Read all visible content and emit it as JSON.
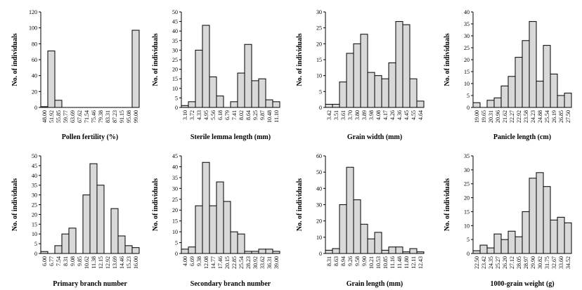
{
  "figure": {
    "ylabel": "No. of individuals"
  },
  "chart_data": [
    {
      "type": "bar",
      "title": "",
      "xlabel": "Pollen fertility (%)",
      "ylabel": "No. of individuals",
      "ylim": [
        0,
        120
      ],
      "yticks": [
        0,
        20,
        40,
        60,
        80,
        100,
        120
      ],
      "categories": [
        "48.00",
        "51.92",
        "55.85",
        "59.77",
        "63.69",
        "67.62",
        "71.54",
        "75.46",
        "79.38",
        "83.31",
        "87.23",
        "91.15",
        "95.08",
        "99.00"
      ],
      "values": [
        1,
        71,
        9,
        0,
        0,
        0,
        0,
        0,
        0,
        0,
        0,
        0,
        0,
        97
      ]
    },
    {
      "type": "bar",
      "title": "",
      "xlabel": "Sterile lemma length (mm)",
      "ylabel": "No. of individuals",
      "ylim": [
        0,
        50
      ],
      "yticks": [
        0,
        5,
        10,
        15,
        20,
        25,
        30,
        35,
        40,
        45,
        50
      ],
      "categories": [
        "3.10",
        "3.72",
        "4.33",
        "4.95",
        "5.56",
        "6.18",
        "6.79",
        "7.41",
        "8.02",
        "8.64",
        "9.25",
        "9.87",
        "10.48",
        "11.10"
      ],
      "values": [
        1,
        3,
        30,
        43,
        16,
        6,
        0,
        3,
        18,
        33,
        14,
        15,
        4,
        3
      ]
    },
    {
      "type": "bar",
      "title": "",
      "xlabel": "Grain width (mm)",
      "ylabel": "No. of individuals",
      "ylim": [
        0,
        30
      ],
      "yticks": [
        0,
        5,
        10,
        15,
        20,
        25,
        30
      ],
      "categories": [
        "3.42",
        "3.51",
        "3.61",
        "3.70",
        "3.80",
        "3.89",
        "3.98",
        "4.08",
        "4.17",
        "4.26",
        "4.36",
        "4.45",
        "4.55",
        "4.64"
      ],
      "values": [
        1,
        1,
        8,
        17,
        20,
        23,
        11,
        10,
        9,
        14,
        27,
        26,
        9,
        2
      ]
    },
    {
      "type": "bar",
      "title": "",
      "xlabel": "Panicle length (cm)",
      "ylabel": "No. of individuals",
      "ylim": [
        0,
        40
      ],
      "yticks": [
        0,
        5,
        10,
        15,
        20,
        25,
        30,
        35,
        40
      ],
      "categories": [
        "19.00",
        "19.65",
        "20.31",
        "20.96",
        "21.62",
        "22.27",
        "22.92",
        "23.58",
        "24.23",
        "24.88",
        "25.54",
        "26.19",
        "26.85",
        "27.50"
      ],
      "values": [
        2,
        0,
        3,
        4,
        9,
        13,
        21,
        28,
        36,
        11,
        26,
        14,
        5,
        6
      ]
    },
    {
      "type": "bar",
      "title": "",
      "xlabel": "Primary branch number",
      "ylabel": "No. of individuals",
      "ylim": [
        0,
        50
      ],
      "yticks": [
        0,
        5,
        10,
        15,
        20,
        25,
        30,
        35,
        40,
        45,
        50
      ],
      "categories": [
        "6.00",
        "6.77",
        "7.54",
        "8.31",
        "9.08",
        "9.85",
        "10.62",
        "11.38",
        "12.15",
        "12.92",
        "13.69",
        "14.46",
        "15.23",
        "16.00"
      ],
      "values": [
        1,
        0,
        4,
        10,
        13,
        0,
        30,
        46,
        35,
        0,
        23,
        9,
        4,
        3
      ]
    },
    {
      "type": "bar",
      "title": "",
      "xlabel": "Secondary branch number",
      "ylabel": "No. of individuals",
      "ylim": [
        0,
        45
      ],
      "yticks": [
        0,
        5,
        10,
        15,
        20,
        25,
        30,
        35,
        40,
        45
      ],
      "categories": [
        "4.00",
        "6.69",
        "9.38",
        "12.08",
        "14.77",
        "17.46",
        "20.15",
        "22.85",
        "25.54",
        "28.23",
        "30.92",
        "33.62",
        "36.31",
        "39.00"
      ],
      "values": [
        2,
        3,
        22,
        42,
        22,
        33,
        24,
        10,
        9,
        1,
        1,
        2,
        2,
        1
      ]
    },
    {
      "type": "bar",
      "title": "",
      "xlabel": "Grain length (mm)",
      "ylabel": "No. of individuals",
      "ylim": [
        0,
        60
      ],
      "yticks": [
        0,
        10,
        20,
        30,
        40,
        50,
        60
      ],
      "categories": [
        "8.31",
        "8.63",
        "8.94",
        "9.26",
        "9.58",
        "9.90",
        "10.21",
        "10.53",
        "10.85",
        "11.16",
        "11.48",
        "11.80",
        "12.11",
        "12.43"
      ],
      "values": [
        2,
        3,
        30,
        53,
        33,
        18,
        9,
        13,
        2,
        4,
        4,
        1,
        3,
        1
      ]
    },
    {
      "type": "bar",
      "title": "",
      "xlabel": "1000-grain weight (g)",
      "ylabel": "No. of individuals",
      "ylim": [
        0,
        35
      ],
      "yticks": [
        0,
        5,
        10,
        15,
        20,
        25,
        30,
        35
      ],
      "categories": [
        "22.50",
        "23.42",
        "24.35",
        "25.27",
        "26.20",
        "27.12",
        "28.05",
        "28.97",
        "29.90",
        "30.82",
        "31.75",
        "32.67",
        "33.60",
        "34.52"
      ],
      "values": [
        1,
        3,
        2,
        7,
        5,
        8,
        6,
        15,
        27,
        29,
        24,
        12,
        13,
        11
      ]
    }
  ]
}
